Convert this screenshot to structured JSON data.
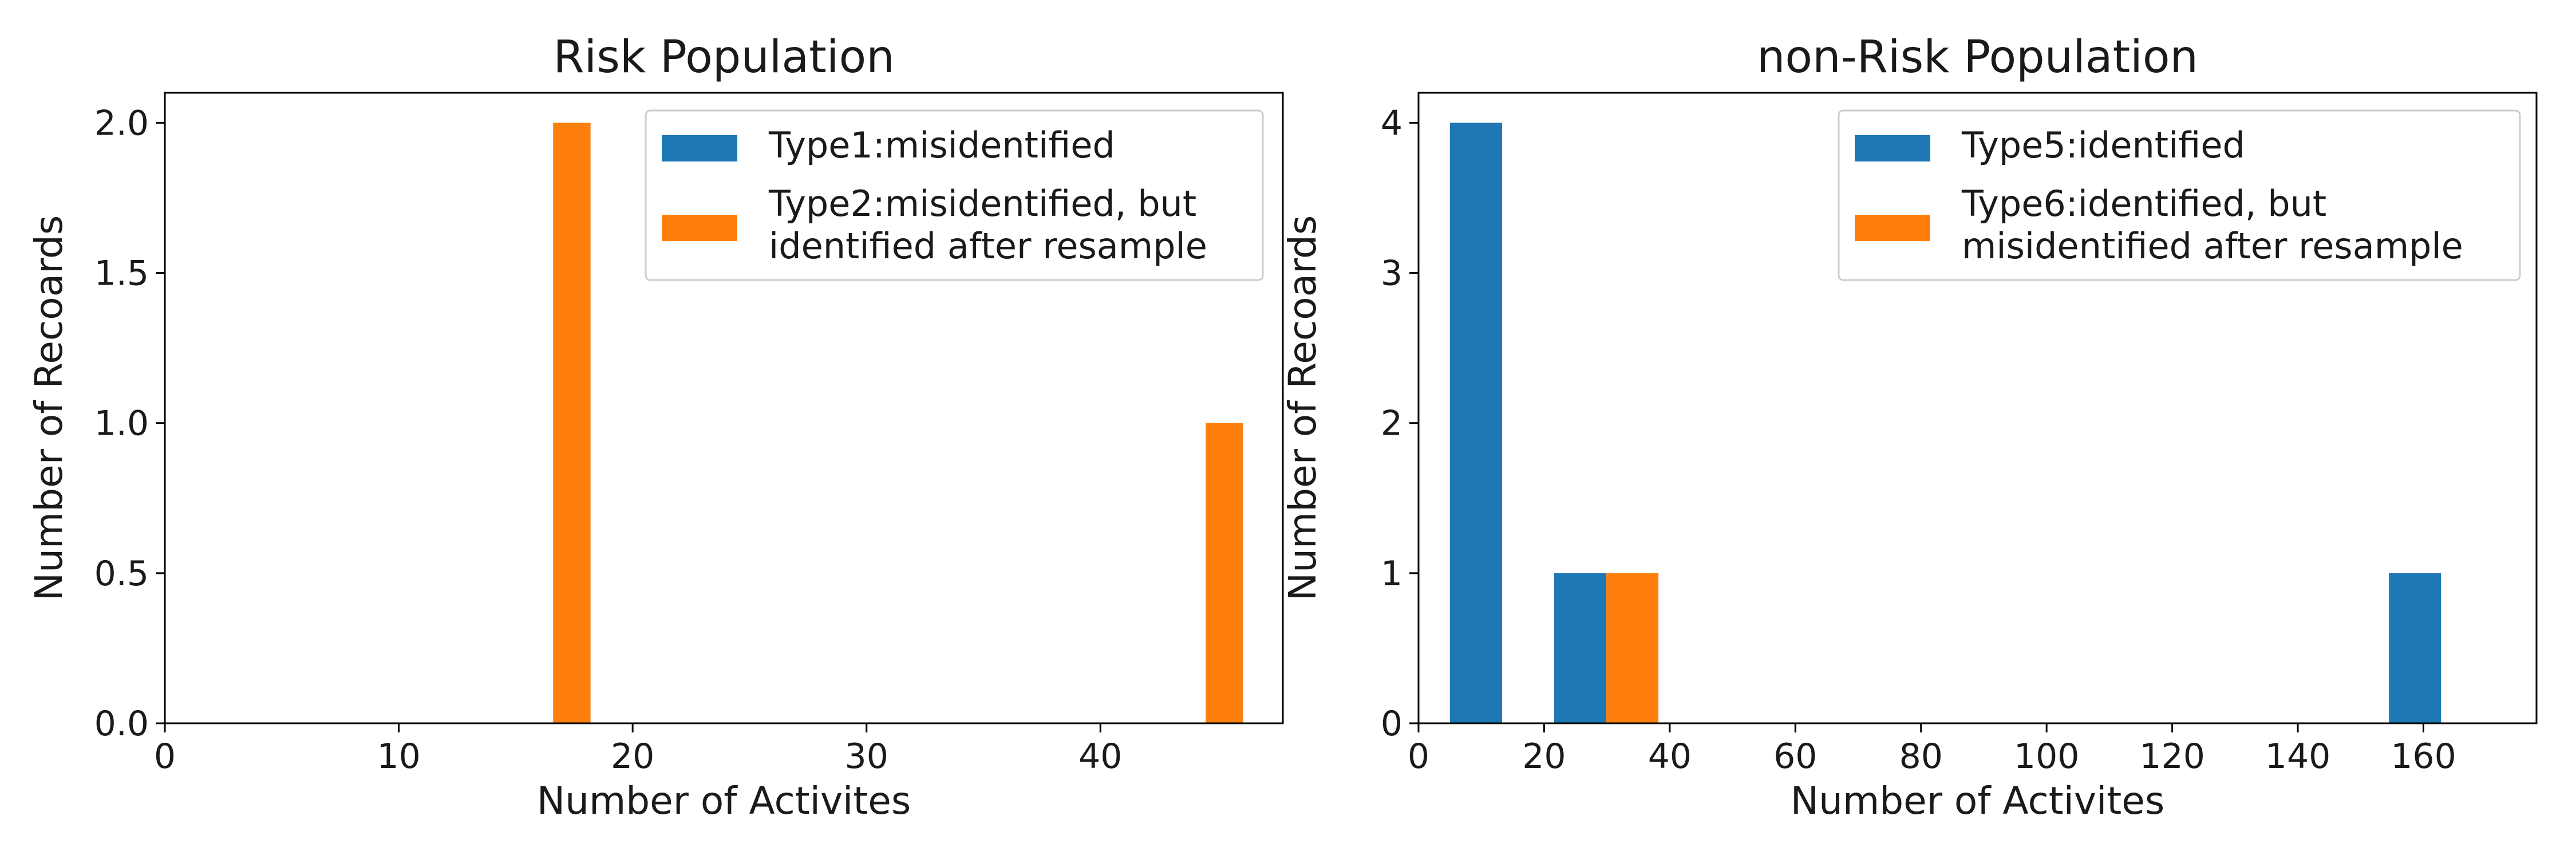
{
  "chart_data": [
    {
      "type": "bar",
      "title": "Risk Population",
      "xlabel": "Number of Activites",
      "ylabel": "Number of Recoards",
      "xlim": [
        0,
        47.8
      ],
      "ylim": [
        0,
        2.1
      ],
      "xticks": [
        0,
        10,
        20,
        30,
        40
      ],
      "yticks": [
        0.0,
        0.5,
        1.0,
        1.5,
        2.0
      ],
      "xtick_labels": [
        "0",
        "10",
        "20",
        "30",
        "40"
      ],
      "ytick_labels": [
        "0.0",
        "0.5",
        "1.0",
        "1.5",
        "2.0"
      ],
      "legend_position": "top-right",
      "grid": false,
      "series": [
        {
          "name": "Type1:misidentified",
          "color": "#1f77b4",
          "bars": []
        },
        {
          "name": "Type2:misidentified, but\nidentified after resample",
          "color": "#ff7f0e",
          "bars": [
            {
              "x0": 16.6,
              "x1": 18.2,
              "value": 2
            },
            {
              "x0": 44.5,
              "x1": 46.1,
              "value": 1
            }
          ]
        }
      ]
    },
    {
      "type": "bar",
      "title": "non-Risk Population",
      "xlabel": "Number of Activites",
      "ylabel": "Number of Recoards",
      "xlim": [
        0,
        178
      ],
      "ylim": [
        0,
        4.2
      ],
      "xticks": [
        0,
        20,
        40,
        60,
        80,
        100,
        120,
        140,
        160
      ],
      "yticks": [
        0,
        1,
        2,
        3,
        4
      ],
      "xtick_labels": [
        "0",
        "20",
        "40",
        "60",
        "80",
        "100",
        "120",
        "140",
        "160"
      ],
      "ytick_labels": [
        "0",
        "1",
        "2",
        "3",
        "4"
      ],
      "legend_position": "top-right",
      "grid": false,
      "series": [
        {
          "name": "Type5:identified",
          "color": "#1f77b4",
          "bars": [
            {
              "x0": 5,
              "x1": 13.3,
              "value": 4
            },
            {
              "x0": 21.6,
              "x1": 29.9,
              "value": 1
            },
            {
              "x0": 154.5,
              "x1": 162.8,
              "value": 1
            }
          ]
        },
        {
          "name": "Type6:identified, but\nmisidentified after resample",
          "color": "#ff7f0e",
          "bars": [
            {
              "x0": 29.9,
              "x1": 38.2,
              "value": 1
            }
          ]
        }
      ]
    }
  ]
}
